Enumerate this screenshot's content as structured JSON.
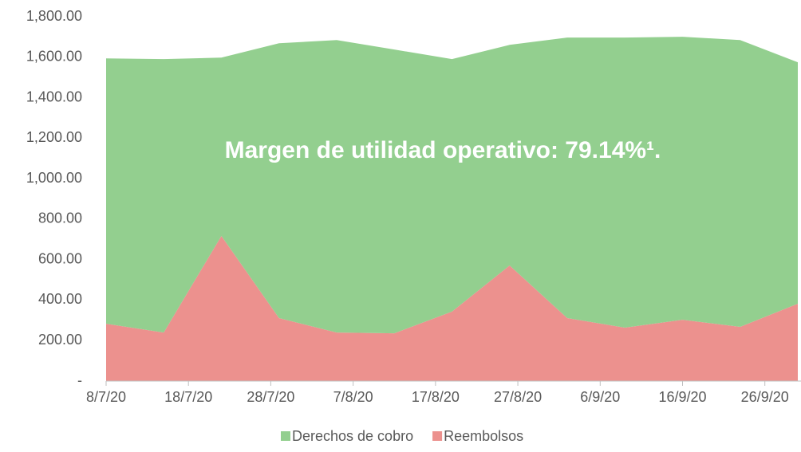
{
  "chart_data": {
    "type": "stacked_area",
    "annotation": "Margen de utilidad operativo: 79.14%¹.",
    "x": [
      "8/7/20",
      "15/7/20",
      "22/7/20",
      "29/7/20",
      "5/8/20",
      "12/8/20",
      "19/8/20",
      "26/8/20",
      "2/9/20",
      "9/9/20",
      "16/9/20",
      "23/9/20",
      "30/9/20"
    ],
    "xlim": [
      "8/7/20",
      "30/9/20"
    ],
    "xticks": [
      "8/7/20",
      "18/7/20",
      "28/7/20",
      "7/8/20",
      "17/8/20",
      "27/8/20",
      "6/9/20",
      "16/9/20",
      "26/9/20"
    ],
    "series": [
      {
        "name": "Reembolsos",
        "color": "#ec918e",
        "values": [
          283,
          240,
          717,
          311,
          240,
          236,
          343,
          571,
          311,
          264,
          303,
          268,
          382
        ]
      },
      {
        "name": "Derechos de cobro",
        "color": "#93cf8f",
        "values": [
          1311,
          1351,
          881,
          1358,
          1445,
          1402,
          1248,
          1090,
          1386,
          1433,
          1398,
          1417,
          1193
        ]
      }
    ],
    "legend_order": [
      "Derechos de cobro",
      "Reembolsos"
    ],
    "ylim": [
      0,
      1800
    ],
    "yticks": [
      {
        "value": 0,
        "label": "-"
      },
      {
        "value": 200,
        "label": "200.00"
      },
      {
        "value": 400,
        "label": "400.00"
      },
      {
        "value": 600,
        "label": "600.00"
      },
      {
        "value": 800,
        "label": "800.00"
      },
      {
        "value": 1000,
        "label": "1,000.00"
      },
      {
        "value": 1200,
        "label": "1,200.00"
      },
      {
        "value": 1400,
        "label": "1,400.00"
      },
      {
        "value": 1600,
        "label": "1,600.00"
      },
      {
        "value": 1800,
        "label": "1,800.00"
      }
    ],
    "grid": false
  }
}
